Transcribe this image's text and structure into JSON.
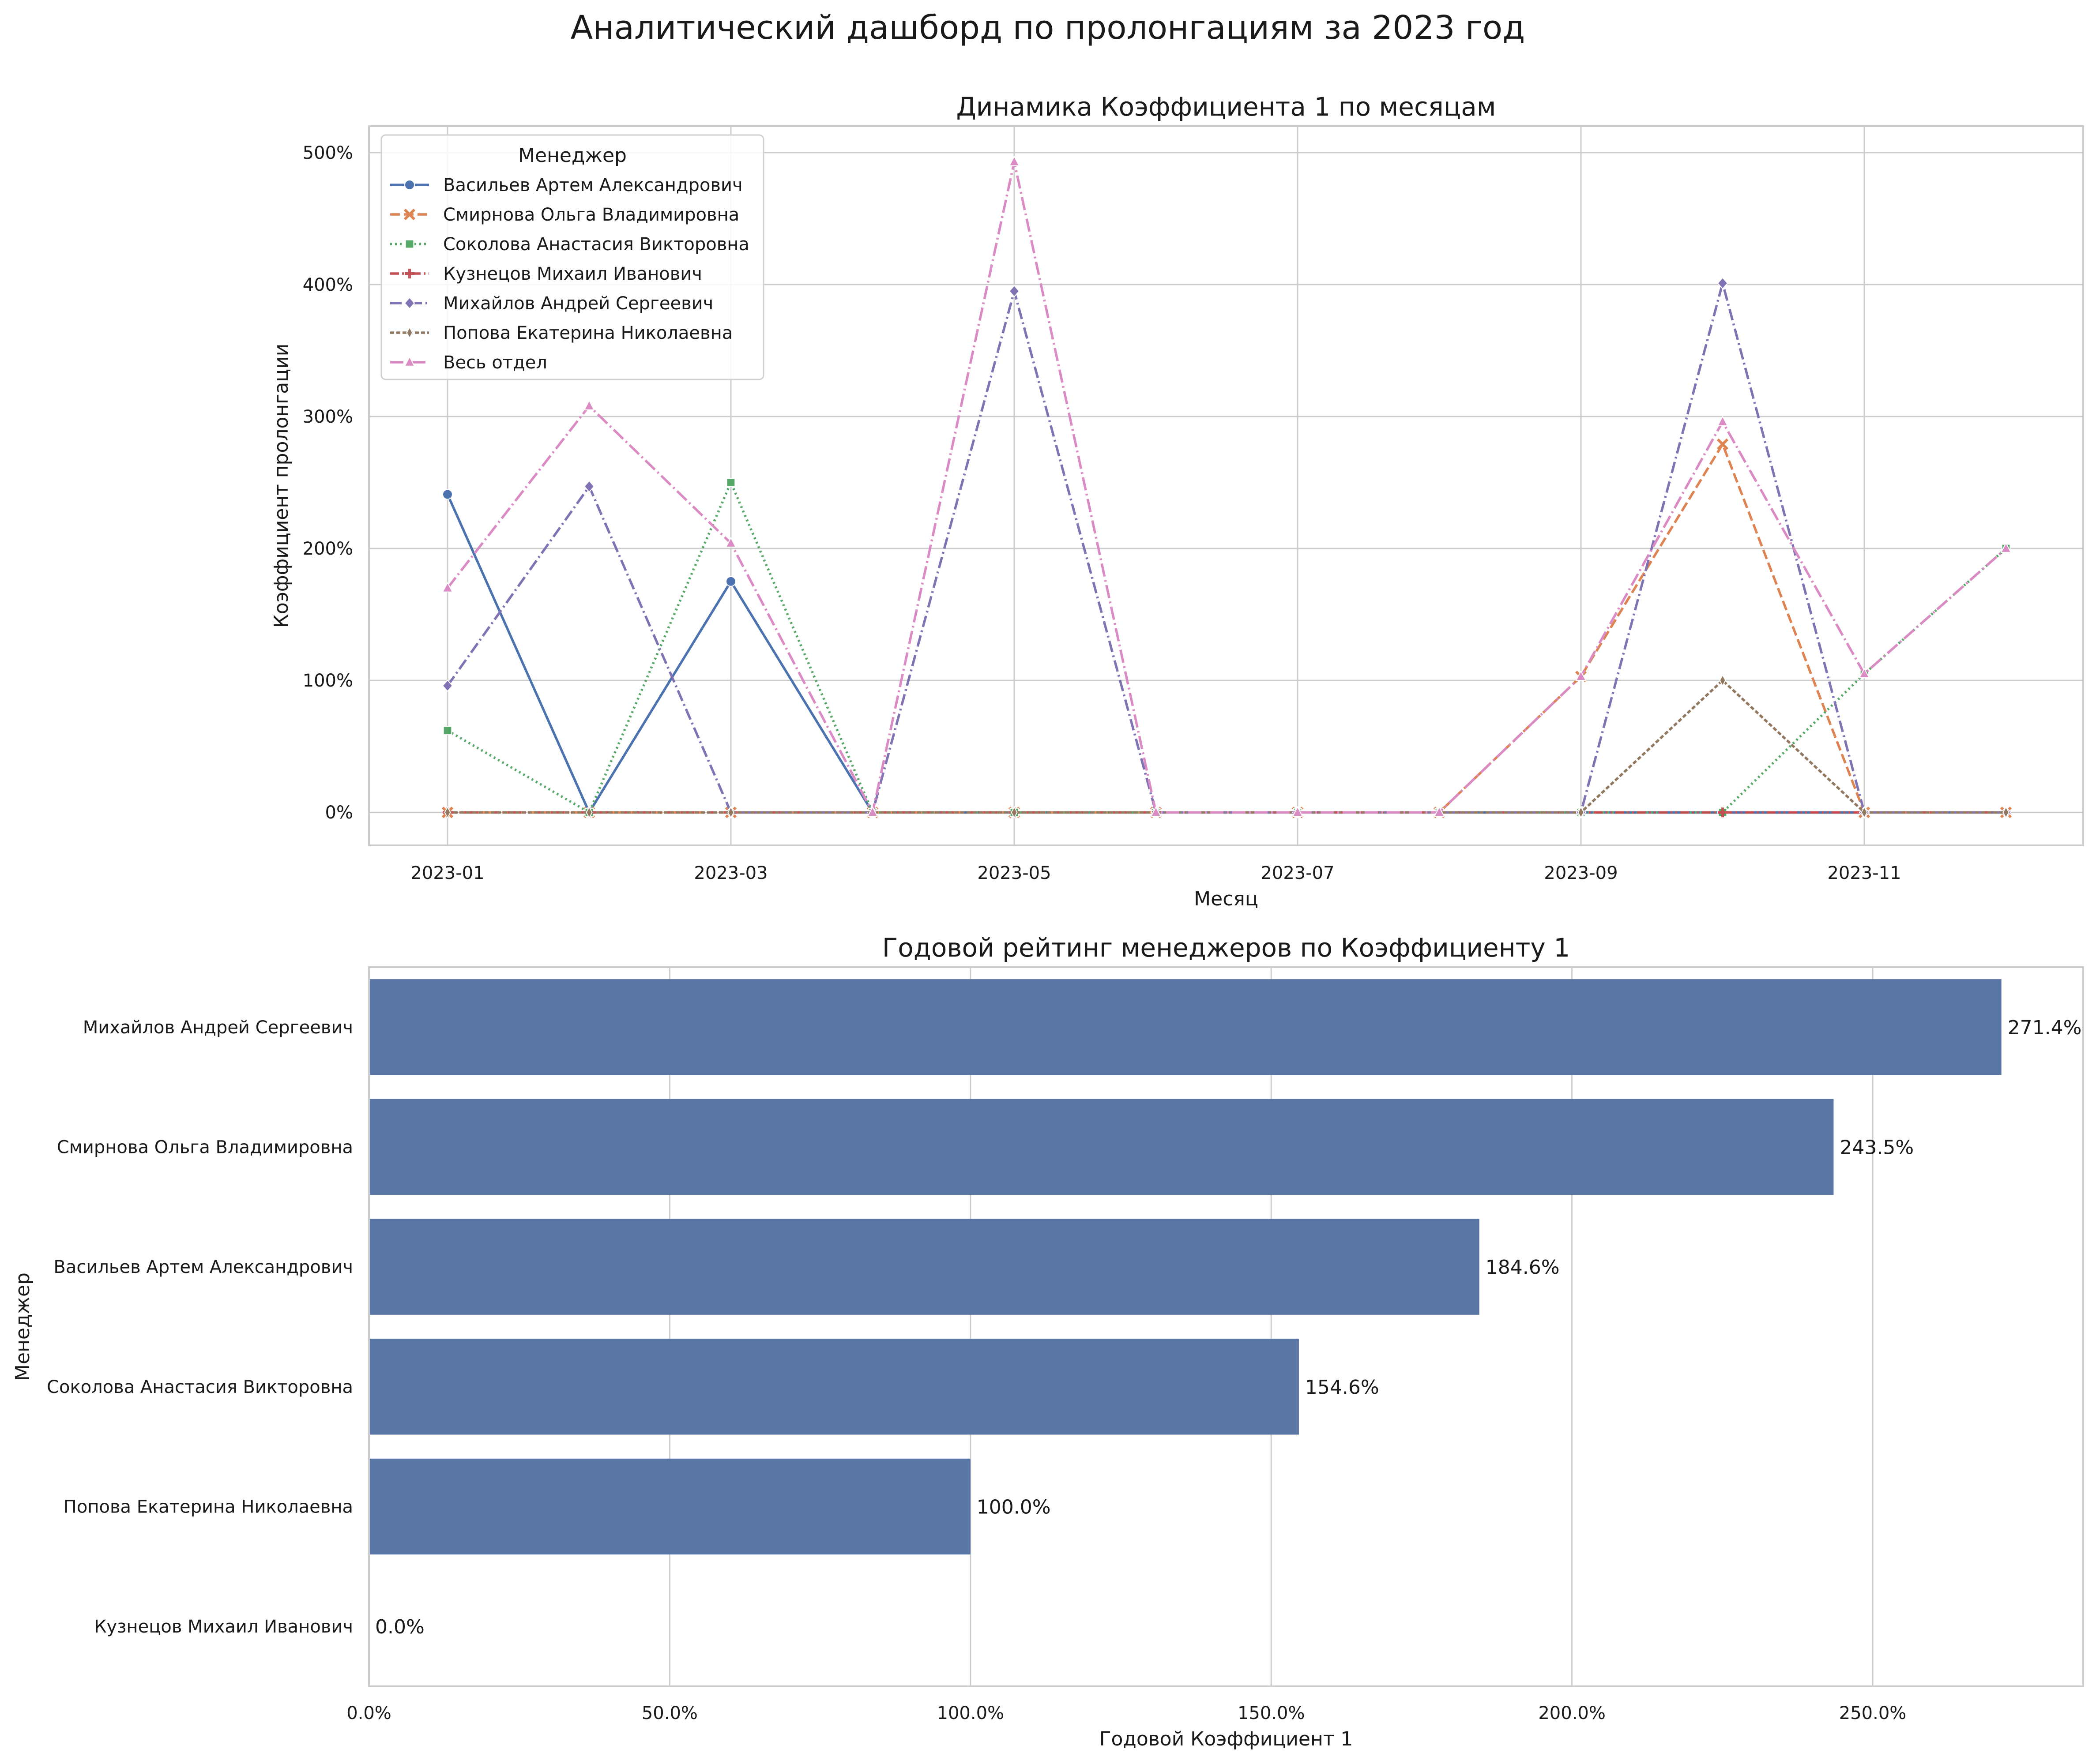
{
  "title": "Аналитический дашборд по пролонгациям за 2023 год",
  "chart_data": [
    {
      "type": "line",
      "title": "Динамика Коэффициента 1 по месяцам",
      "xlabel": "Месяц",
      "ylabel": "Коэффициент пролонгации",
      "x": [
        "2023-01",
        "2023-02",
        "2023-03",
        "2023-04",
        "2023-05",
        "2023-06",
        "2023-07",
        "2023-08",
        "2023-09",
        "2023-10",
        "2023-11",
        "2023-12"
      ],
      "x_tick_labels": [
        "2023-01",
        "2023-03",
        "2023-05",
        "2023-07",
        "2023-09",
        "2023-11"
      ],
      "x_tick_indices": [
        0,
        2,
        4,
        6,
        8,
        10
      ],
      "ylim": [
        -25,
        520
      ],
      "y_ticks": [
        0,
        100,
        200,
        300,
        400,
        500
      ],
      "y_tick_labels": [
        "0%",
        "100%",
        "200%",
        "300%",
        "400%",
        "500%"
      ],
      "grid": true,
      "legend": {
        "title": "Менеджер",
        "placement": "top-left"
      },
      "series": [
        {
          "name": "Васильев Артем Александрович",
          "color": "#4c72b0",
          "dash": "solid",
          "marker": "circle",
          "values": [
            241,
            0,
            175,
            0,
            0,
            0,
            0,
            0,
            0,
            0,
            0,
            0
          ]
        },
        {
          "name": "Смирнова Ольга Владимировна",
          "color": "#dd8452",
          "dash": "dashed",
          "marker": "x",
          "values": [
            0,
            0,
            0,
            0,
            0,
            0,
            0,
            0,
            103,
            279,
            0,
            0
          ]
        },
        {
          "name": "Соколова Анастасия Викторовна",
          "color": "#55a868",
          "dash": "dotted",
          "marker": "square",
          "values": [
            62,
            0,
            250,
            0,
            0,
            0,
            0,
            0,
            0,
            0,
            105,
            200
          ]
        },
        {
          "name": "Кузнецов Михаил Иванович",
          "color": "#c44e52",
          "dash": "dashdotdot",
          "marker": "plus",
          "values": [
            0,
            0,
            0,
            0,
            0,
            0,
            0,
            0,
            0,
            0,
            0,
            0
          ]
        },
        {
          "name": "Михайлов Андрей Сергеевич",
          "color": "#8172b3",
          "dash": "dashdot",
          "marker": "diamond",
          "values": [
            96,
            247,
            0,
            0,
            395,
            0,
            0,
            0,
            0,
            401,
            0,
            0
          ]
        },
        {
          "name": "Попова Екатерина Николаевна",
          "color": "#937860",
          "dash": "densedash",
          "marker": "thin-diamond",
          "values": [
            0,
            0,
            0,
            0,
            0,
            0,
            0,
            0,
            0,
            100,
            0,
            0
          ]
        },
        {
          "name": "Весь отдел",
          "color": "#da8bc3",
          "dash": "longdashdot",
          "marker": "triangle",
          "values": [
            170,
            308,
            204,
            0,
            493,
            0,
            0,
            0,
            103,
            296,
            105,
            200
          ]
        }
      ]
    },
    {
      "type": "bar",
      "orientation": "horizontal",
      "title": "Годовой рейтинг менеджеров по Коэффициенту 1",
      "xlabel": "Годовой Коэффициент 1",
      "ylabel": "Менеджер",
      "categories": [
        "Михайлов Андрей Сергеевич",
        "Смирнова Ольга Владимировна",
        "Васильев Артем Александрович",
        "Соколова Анастасия Викторовна",
        "Попова Екатерина Николаевна",
        "Кузнецов Михаил Иванович"
      ],
      "values": [
        271.4,
        243.5,
        184.6,
        154.6,
        100.0,
        0.0
      ],
      "value_labels": [
        "271.4%",
        "243.5%",
        "184.6%",
        "154.6%",
        "100.0%",
        "0.0%"
      ],
      "xlim": [
        0,
        285
      ],
      "x_ticks": [
        0,
        50,
        100,
        150,
        200,
        250
      ],
      "x_tick_labels": [
        "0.0%",
        "50.0%",
        "100.0%",
        "150.0%",
        "200.0%",
        "250.0%"
      ],
      "grid": true,
      "bar_color": "#5975a4"
    }
  ]
}
